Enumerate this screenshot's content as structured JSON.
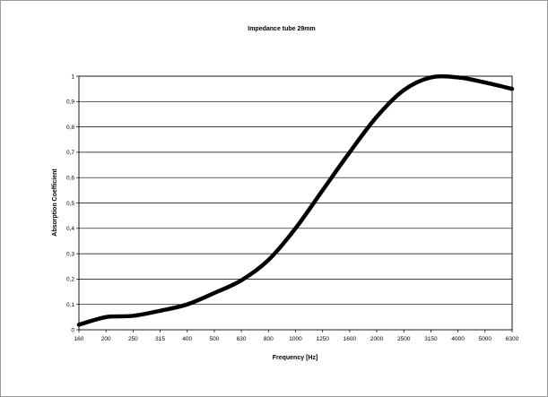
{
  "chart_data": {
    "type": "line",
    "title": "Impedance tube 29mm",
    "xlabel": "Frequency [Hz]",
    "ylabel": "Absorption Coefficient",
    "categories": [
      "160",
      "200",
      "250",
      "315",
      "400",
      "500",
      "630",
      "800",
      "1000",
      "1250",
      "1600",
      "2000",
      "2500",
      "3150",
      "4000",
      "5000",
      "6300"
    ],
    "y_ticks": [
      "0",
      "0,1",
      "0,2",
      "0,3",
      "0,4",
      "0,5",
      "0,6",
      "0,7",
      "0,8",
      "0,9",
      "1"
    ],
    "ylim": [
      0,
      1
    ],
    "grid": "horizontal",
    "series": [
      {
        "values": [
          0.02,
          0.05,
          0.055,
          0.075,
          0.1,
          0.145,
          0.195,
          0.275,
          0.4,
          0.55,
          0.7,
          0.84,
          0.945,
          0.995,
          0.995,
          0.975,
          0.95
        ]
      }
    ],
    "line_color": "#000000"
  }
}
